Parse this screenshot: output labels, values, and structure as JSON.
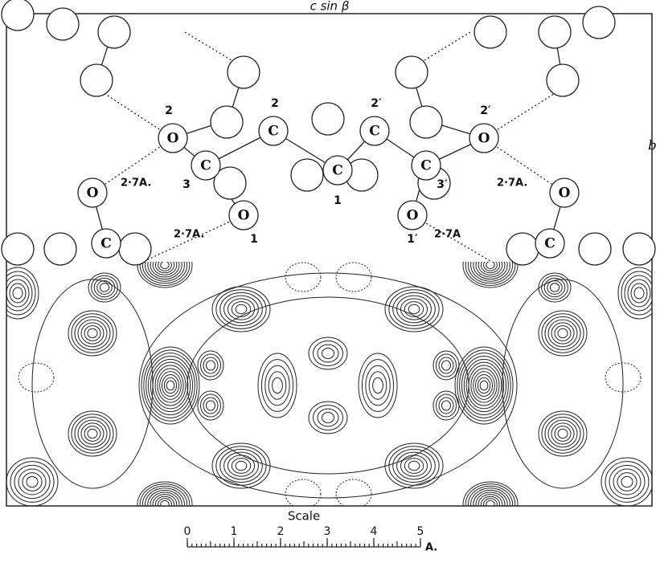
{
  "axis_labels": {
    "horizontal": "c sin β",
    "vertical": "b"
  },
  "atoms": [
    "O",
    "C",
    "C",
    "C",
    "C",
    "C",
    "O",
    "O",
    "O",
    "O",
    "O",
    "C",
    "C"
  ],
  "atom_numbers": [
    "2",
    "3",
    "2",
    "1",
    "2′",
    "3′",
    "2′",
    "1",
    "1′"
  ],
  "distances": [
    "2·7A.",
    "2·7A.",
    "2·7A.",
    "2·7A"
  ],
  "scale": {
    "title": "Scale",
    "ticks": [
      0,
      1,
      2,
      3,
      4,
      5
    ],
    "unit": "A."
  }
}
